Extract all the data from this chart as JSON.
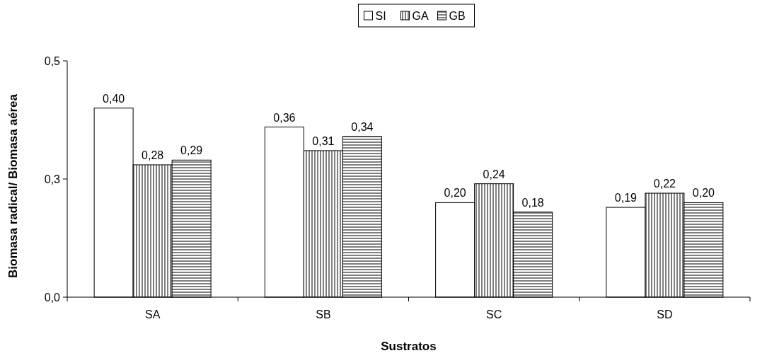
{
  "chart_data": {
    "type": "bar",
    "xlabel": "Sustratos",
    "ylabel": "Biomasa radical/ Biomasa aérea",
    "categories": [
      "SA",
      "SB",
      "SC",
      "SD"
    ],
    "series": [
      {
        "name": "SI",
        "color": "#ffffff",
        "values": [
          0.4,
          0.36,
          0.2,
          0.19
        ],
        "value_labels": [
          "0,40",
          "0,36",
          "0,20",
          "0,19"
        ]
      },
      {
        "name": "GA",
        "color": "#000000",
        "values": [
          0.28,
          0.31,
          0.24,
          0.22
        ],
        "value_labels": [
          "0,28",
          "0,31",
          "0,24",
          "0,22"
        ]
      },
      {
        "name": "GB",
        "color": "#000000",
        "values": [
          0.29,
          0.34,
          0.18,
          0.2
        ],
        "value_labels": [
          "0,29",
          "0,34",
          "0,18",
          "0,20"
        ]
      }
    ],
    "ylim": [
      0,
      0.5
    ],
    "yticks": [
      {
        "value": 0,
        "label": "0,0"
      },
      {
        "value": 0.25,
        "label": "0,3"
      },
      {
        "value": 0.5,
        "label": "0,5"
      }
    ],
    "legend": "top"
  }
}
